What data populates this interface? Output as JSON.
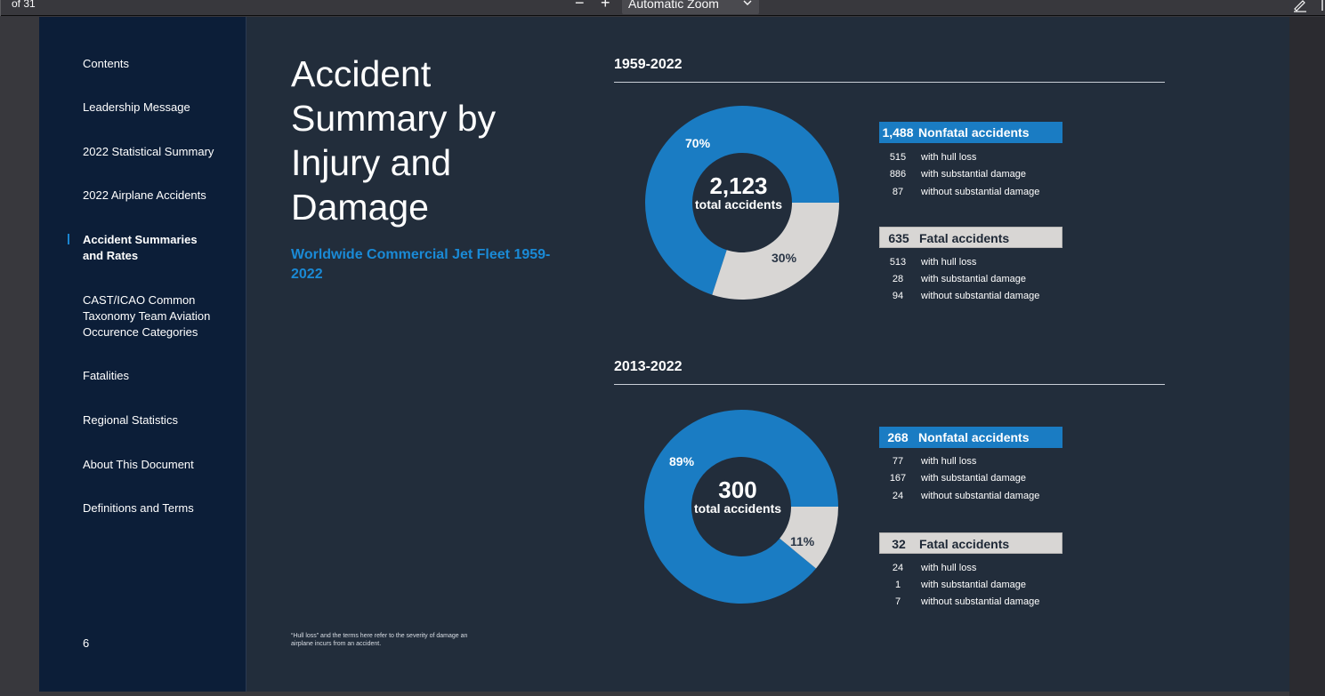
{
  "toolbar": {
    "page_count": "of 31",
    "zoom_out": "−",
    "zoom_in": "+",
    "zoom_value": "Automatic Zoom"
  },
  "sidebar": {
    "items": [
      {
        "label": "Contents"
      },
      {
        "label": "Leadership Message"
      },
      {
        "label": "2022 Statistical Summary"
      },
      {
        "label": "2022 Airplane Accidents"
      },
      {
        "label": "Accident Summaries and Rates",
        "active": true
      },
      {
        "label": "CAST/ICAO Common Taxonomy Team Aviation Occurence Categories"
      },
      {
        "label": "Fatalities"
      },
      {
        "label": "Regional Statistics"
      },
      {
        "label": "About This Document"
      },
      {
        "label": "Definitions and Terms"
      }
    ],
    "page_number": "6"
  },
  "main": {
    "title": "Accident Summary by Injury and Damage",
    "subtitle": "Worldwide Commercial Jet Fleet 1959-2022",
    "footnote": "“Hull loss” and the terms here refer to the severity of damage an airplane incurs from an accident."
  },
  "colors": {
    "nonfatal": "#1a7cc3",
    "fatal": "#d8d6d4",
    "page_bg": "#222d3b",
    "sidebar_bg": "#0c1e38"
  },
  "chart_data": [
    {
      "type": "pie",
      "title": "1959-2022",
      "total": "2,123",
      "total_label": "total accidents",
      "slices": [
        {
          "name": "Nonfatal accidents",
          "value": 70,
          "label": "70%",
          "count": "1,488"
        },
        {
          "name": "Fatal accidents",
          "value": 30,
          "label": "30%",
          "count": "635"
        }
      ],
      "breakdown": {
        "nonfatal": [
          {
            "count": "515",
            "label": "with hull loss"
          },
          {
            "count": "886",
            "label": "with substantial damage"
          },
          {
            "count": "87",
            "label": "without substantial damage"
          }
        ],
        "fatal": [
          {
            "count": "513",
            "label": "with hull loss"
          },
          {
            "count": "28",
            "label": "with substantial damage"
          },
          {
            "count": "94",
            "label": "without substantial damage"
          }
        ]
      }
    },
    {
      "type": "pie",
      "title": "2013-2022",
      "total": "300",
      "total_label": "total accidents",
      "slices": [
        {
          "name": "Nonfatal accidents",
          "value": 89,
          "label": "89%",
          "count": "268"
        },
        {
          "name": "Fatal accidents",
          "value": 11,
          "label": "11%",
          "count": "32"
        }
      ],
      "breakdown": {
        "nonfatal": [
          {
            "count": "77",
            "label": "with hull loss"
          },
          {
            "count": "167",
            "label": "with substantial damage"
          },
          {
            "count": "24",
            "label": "without substantial damage"
          }
        ],
        "fatal": [
          {
            "count": "24",
            "label": "with hull loss"
          },
          {
            "count": "1",
            "label": "with substantial damage"
          },
          {
            "count": "7",
            "label": "without substantial damage"
          }
        ]
      }
    }
  ]
}
